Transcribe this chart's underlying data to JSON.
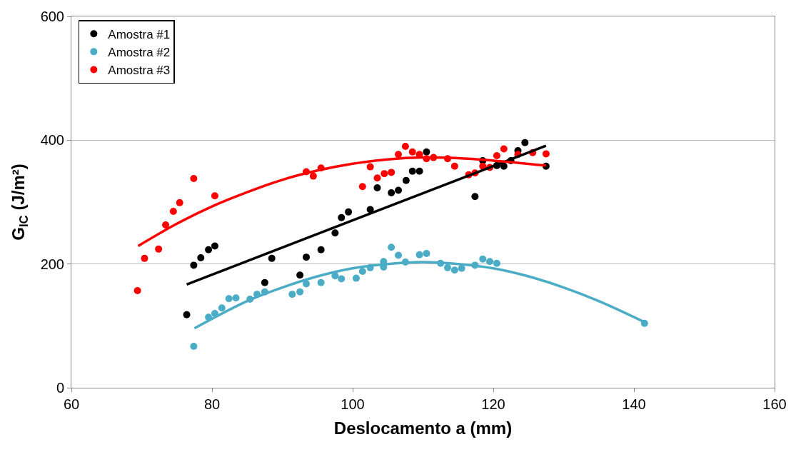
{
  "chart_data": {
    "type": "scatter",
    "xlabel": "Deslocamento a (mm)",
    "ylabel": "G$_{IC}$ (J/m²)",
    "xlim": [
      60,
      160
    ],
    "xticks": [
      60,
      80,
      100,
      120,
      140,
      160
    ],
    "ylim": [
      0,
      600
    ],
    "yticks": [
      0,
      200,
      400,
      600
    ],
    "grid": "y",
    "legend": "top left",
    "series": [
      {
        "name": "Amostra #1",
        "marker": "circle",
        "color": "#000000",
        "x": [
          76.4,
          77.4,
          78.4,
          79.5,
          80.4,
          87.5,
          88.5,
          92.5,
          93.4,
          95.5,
          97.5,
          98.4,
          99.4,
          102.5,
          103.5,
          105.5,
          106.5,
          107.6,
          108.5,
          109.5,
          110.5,
          117.4,
          118.5,
          120.5,
          121.5,
          122.5,
          123.5,
          124.5,
          127.5
        ],
        "values": [
          118,
          198,
          210,
          223,
          229,
          170,
          209,
          182,
          211,
          223,
          250,
          275,
          284,
          288,
          323,
          315,
          319,
          335,
          350,
          350,
          381,
          309,
          367,
          359,
          358,
          367,
          383,
          396,
          358
        ]
      },
      {
        "name": "Amostra #2",
        "marker": "circle",
        "color": "#4bacc6",
        "x": [
          77.4,
          79.5,
          80.4,
          81.4,
          82.4,
          83.4,
          85.4,
          86.4,
          87.5,
          91.4,
          92.5,
          93.4,
          95.5,
          97.5,
          98.4,
          100.5,
          101.4,
          102.5,
          104.4,
          104.4,
          105.5,
          106.5,
          107.5,
          109.5,
          110.5,
          112.5,
          113.5,
          114.5,
          115.5,
          117.4,
          118.5,
          119.5,
          120.5,
          141.5
        ],
        "values": [
          67,
          114,
          120,
          129,
          144,
          145,
          143,
          151,
          155,
          151,
          155,
          168,
          170,
          181,
          176,
          177,
          188,
          194,
          204,
          195,
          227,
          214,
          203,
          215,
          217,
          201,
          194,
          190,
          193,
          198,
          208,
          204,
          201,
          104
        ]
      },
      {
        "name": "Amostra #3",
        "marker": "circle",
        "color": "#ff0000",
        "x": [
          69.4,
          70.4,
          72.4,
          73.4,
          74.5,
          75.4,
          77.4,
          80.4,
          93.4,
          94.4,
          95.5,
          101.4,
          102.5,
          103.5,
          104.5,
          105.5,
          106.5,
          107.5,
          108.5,
          109.5,
          110.5,
          111.5,
          113.5,
          114.5,
          116.5,
          117.4,
          118.5,
          119.5,
          120.5,
          121.5,
          123.5,
          125.6,
          127.5
        ],
        "values": [
          157,
          209,
          224,
          263,
          285,
          299,
          338,
          310,
          349,
          342,
          355,
          325,
          357,
          339,
          346,
          348,
          377,
          390,
          381,
          377,
          370,
          372,
          370,
          358,
          344,
          347,
          358,
          356,
          375,
          386,
          377,
          380,
          378
        ]
      },
      {
        "type": "line",
        "color": "#000000",
        "x": [
          76.4,
          127.5
        ],
        "values": [
          167,
          391
        ]
      },
      {
        "type": "line",
        "color": "#4bacc6",
        "x": [
          77.5,
          85,
          90,
          95,
          100,
          105,
          110,
          115,
          120,
          125,
          130,
          135,
          141.5
        ],
        "values": [
          96,
          140,
          162,
          180,
          193,
          200,
          203,
          200,
          193,
          180,
          162,
          140,
          106
        ]
      },
      {
        "type": "line",
        "color": "#ff0000",
        "x": [
          69.5,
          75,
          80,
          85,
          90,
          95,
          100,
          105,
          110,
          115,
          120,
          127.5
        ],
        "values": [
          229,
          265,
          293,
          316,
          336,
          351,
          362,
          369,
          372,
          371,
          367,
          359
        ]
      }
    ]
  }
}
